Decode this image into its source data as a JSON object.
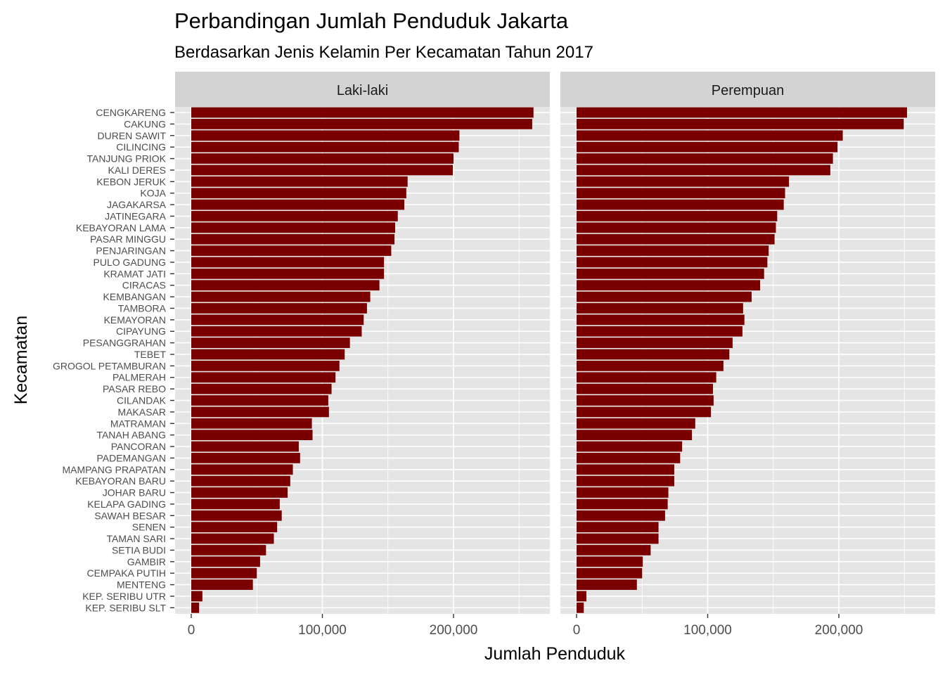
{
  "chart_data": {
    "type": "bar",
    "orientation": "horizontal",
    "title": "Perbandingan Jumlah Penduduk Jakarta",
    "subtitle": "Berdasarkan Jenis Kelamin Per Kecamatan Tahun 2017",
    "xlabel": "Jumlah Penduduk",
    "ylabel": "Kecamatan",
    "xlim": [
      0,
      275000
    ],
    "x_ticks": [
      0,
      100000,
      200000
    ],
    "x_tick_labels": [
      "0",
      "100,000",
      "200,000"
    ],
    "grid": true,
    "bar_color": "#7a0000",
    "panel_background": "#e5e5e5",
    "strip_background": "#d3d3d3",
    "categories": [
      "CENGKARENG",
      "CAKUNG",
      "DUREN SAWIT",
      "CILINCING",
      "TANJUNG PRIOK",
      "KALI DERES",
      "KEBON JERUK",
      "KOJA",
      "JAGAKARSA",
      "JATINEGARA",
      "KEBAYORAN LAMA",
      "PASAR MINGGU",
      "PENJARINGAN",
      "PULO GADUNG",
      "KRAMAT JATI",
      "CIRACAS",
      "KEMBANGAN",
      "TAMBORA",
      "KEMAYORAN",
      "CIPAYUNG",
      "PESANGGRAHAN",
      "TEBET",
      "GROGOL PETAMBURAN",
      "PALMERAH",
      "PASAR REBO",
      "CILANDAK",
      "MAKASAR",
      "MATRAMAN",
      "TANAH ABANG",
      "PANCORAN",
      "PADEMANGAN",
      "MAMPANG PRAPATAN",
      "KEBAYORAN BARU",
      "JOHAR BARU",
      "KELAPA GADING",
      "SAWAH BESAR",
      "SENEN",
      "TAMAN SARI",
      "SETIA BUDI",
      "GAMBIR",
      "CEMPAKA PUTIH",
      "MENTENG",
      "KEP. SERIBU UTR",
      "KEP. SERIBU SLT"
    ],
    "series": [
      {
        "name": "Laki-laki",
        "values": [
          261000,
          260000,
          204500,
          204000,
          200000,
          199500,
          165000,
          164000,
          162500,
          157500,
          155500,
          155000,
          152500,
          147000,
          147000,
          143500,
          136500,
          134000,
          131500,
          130000,
          121000,
          117000,
          113000,
          110000,
          107000,
          104500,
          105000,
          92000,
          92500,
          82000,
          83000,
          77500,
          75500,
          73500,
          67500,
          69000,
          65500,
          63000,
          57000,
          52500,
          50000,
          47000,
          8500,
          6000
        ]
      },
      {
        "name": "Perempuan",
        "values": [
          252000,
          249500,
          203000,
          199000,
          195500,
          193500,
          162000,
          159000,
          158000,
          153000,
          152000,
          151000,
          146500,
          145500,
          143000,
          140000,
          133500,
          127000,
          128000,
          126500,
          119000,
          116500,
          112000,
          106500,
          104000,
          104500,
          102500,
          90500,
          88000,
          80500,
          79000,
          74500,
          74500,
          70000,
          69500,
          67500,
          62500,
          62500,
          56500,
          50500,
          50000,
          46000,
          7500,
          5500
        ]
      }
    ]
  }
}
